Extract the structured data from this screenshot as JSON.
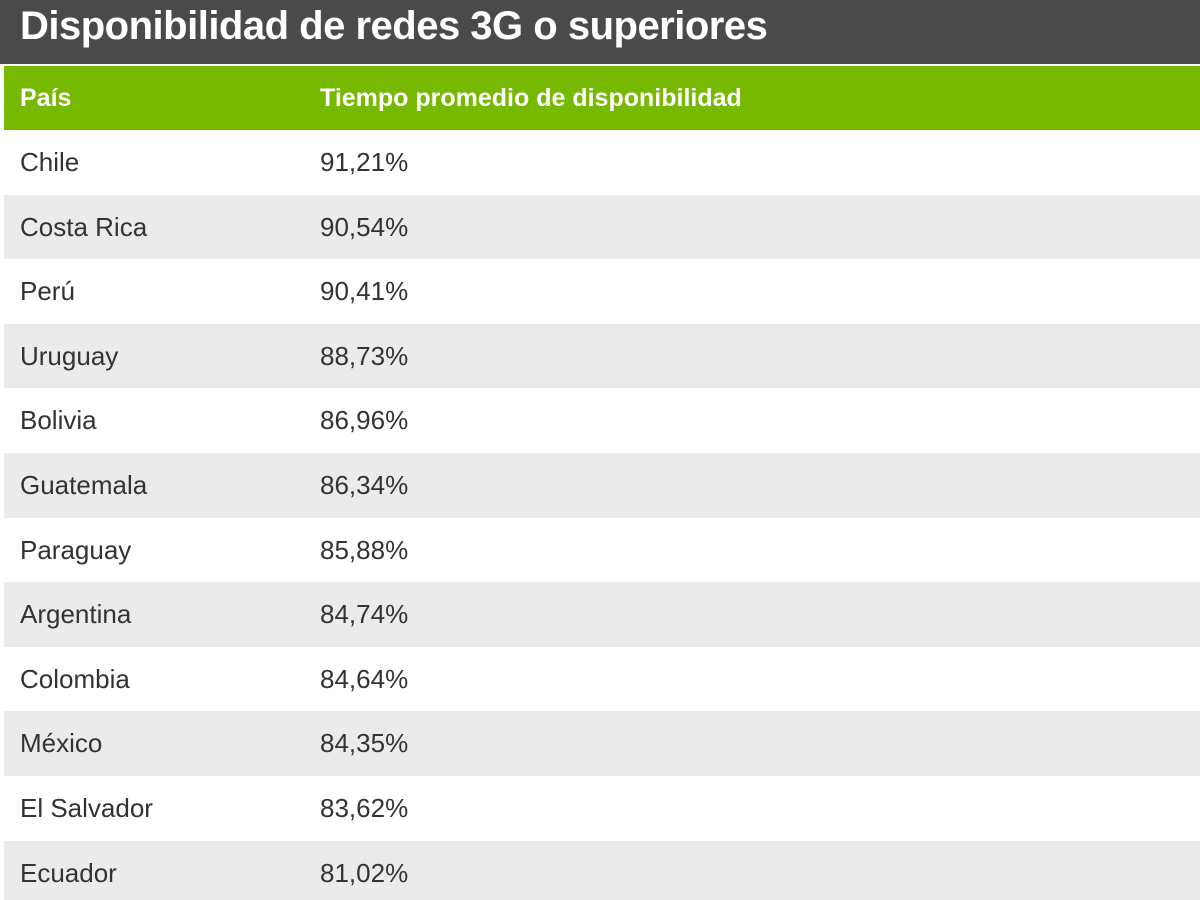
{
  "title": "Disponibilidad de redes 3G o superiores",
  "colors": {
    "title_bg": "#4a4a4a",
    "header_bg": "#76b900",
    "row_alt_bg": "#ebebeb",
    "text": "#333333"
  },
  "chart_data": {
    "type": "table",
    "title": "Disponibilidad de redes 3G o superiores",
    "columns": [
      "País",
      "Tiempo promedio de disponibilidad"
    ],
    "rows": [
      [
        "Chile",
        "91,21%"
      ],
      [
        "Costa Rica",
        "90,54%"
      ],
      [
        "Perú",
        "90,41%"
      ],
      [
        "Uruguay",
        "88,73%"
      ],
      [
        "Bolivia",
        "86,96%"
      ],
      [
        "Guatemala",
        "86,34%"
      ],
      [
        "Paraguay",
        "85,88%"
      ],
      [
        "Argentina",
        "84,74%"
      ],
      [
        "Colombia",
        "84,64%"
      ],
      [
        "México",
        "84,35%"
      ],
      [
        "El Salvador",
        "83,62%"
      ],
      [
        "Ecuador",
        "81,02%"
      ]
    ]
  }
}
